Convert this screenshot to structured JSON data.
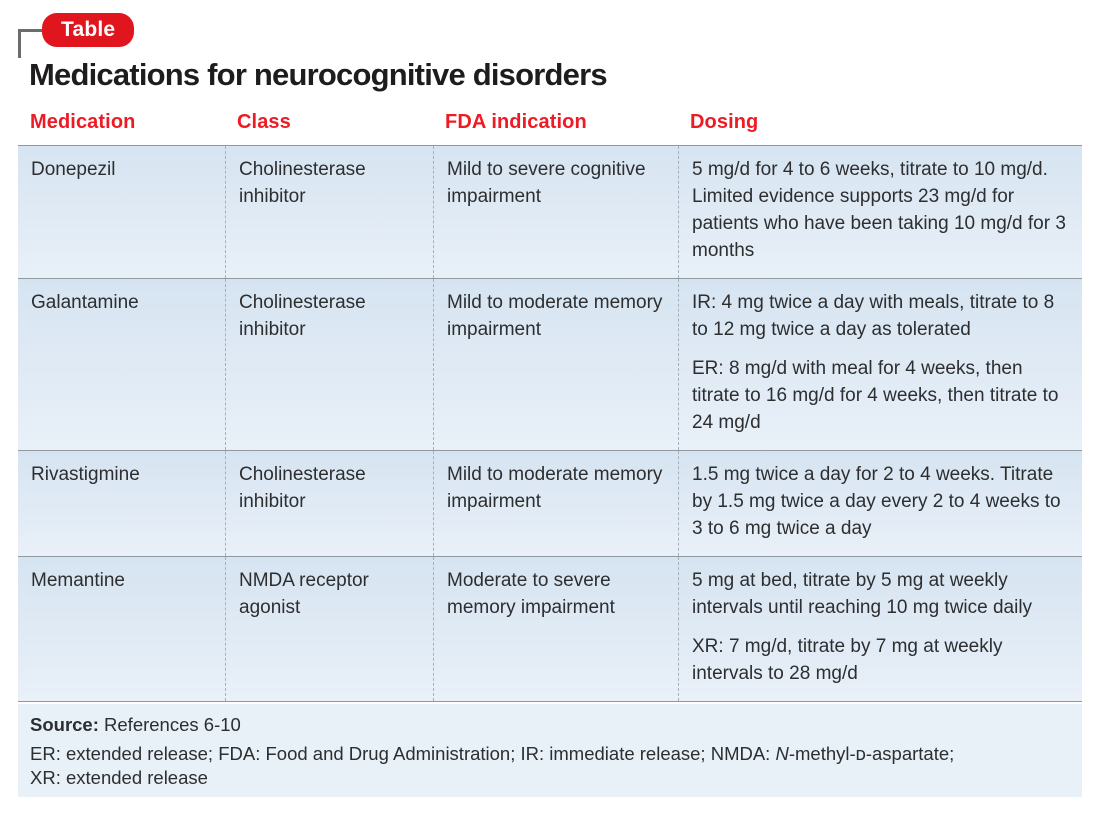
{
  "colors": {
    "accent": "#ed1b24",
    "badge": "#e0151e",
    "rule_gray": "#8f99a1",
    "divider_gray": "#a3b1be",
    "footer_bg": "#e8f0f8",
    "bracket_gray": "#6a6c6e"
  },
  "badge": {
    "label": "Table"
  },
  "title": "Medications for neurocognitive disorders",
  "table": {
    "columns": [
      "Medication",
      "Class",
      "FDA indication",
      "Dosing"
    ],
    "rows": [
      {
        "medication": "Donepezil",
        "class": "Cholinesterase inhibitor",
        "fda_indication": "Mild to severe cognitive impairment",
        "dosing_p1": "5 mg/d for 4 to 6 weeks, titrate to 10 mg/d. Limited evidence supports 23 mg/d for patients who have been taking 10 mg/d for 3 months"
      },
      {
        "medication": "Galantamine",
        "class": "Cholinesterase inhibitor",
        "fda_indication": "Mild to moderate memory impairment",
        "dosing_p1": "IR: 4 mg twice a day with meals, titrate to 8 to 12 mg twice a day as tolerated",
        "dosing_p2": "ER: 8 mg/d with meal for 4 weeks, then titrate to 16 mg/d for 4 weeks, then titrate to 24 mg/d"
      },
      {
        "medication": "Rivastigmine",
        "class": "Cholinesterase inhibitor",
        "fda_indication": "Mild to moderate memory impairment",
        "dosing_p1": "1.5 mg twice a day for 2 to 4 weeks. Titrate by 1.5 mg twice a day every 2 to 4 weeks to 3 to 6 mg twice a day"
      },
      {
        "medication": "Memantine",
        "class": "NMDA receptor agonist",
        "fda_indication": "Moderate to severe memory impairment",
        "dosing_p1": "5 mg at bed, titrate by 5 mg at weekly intervals until reaching 10 mg twice daily",
        "dosing_p2": "XR: 7 mg/d, titrate by 7 mg at weekly intervals to 28 mg/d"
      }
    ]
  },
  "footer": {
    "source_label": "Source:",
    "source_text": " References 6-10",
    "abbrev_pre": "ER: extended release; FDA: Food and Drug Administration; IR: immediate release; NMDA: ",
    "abbrev_nmda_italic": "N",
    "abbrev_post": "-methyl-ᴅ-aspartate;",
    "abbrev_line2": "XR: extended release"
  }
}
